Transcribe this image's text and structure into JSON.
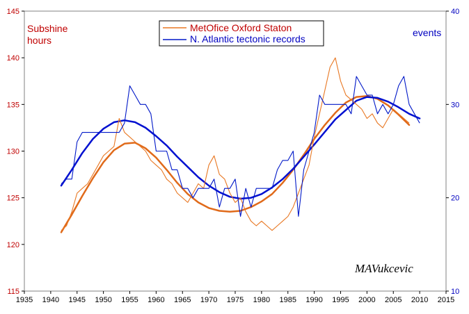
{
  "chart_data": {
    "type": "line",
    "left_axis_label": [
      "Subshine",
      "hours"
    ],
    "right_axis_label": "events",
    "signature": "MAVukcevic",
    "legend": [
      {
        "name": "MetOfice Oxford Staton",
        "color": "#e87722"
      },
      {
        "name": "N. Atlantic tectonic records",
        "color": "#0018c8"
      }
    ],
    "x_ticks": [
      1935,
      1940,
      1945,
      1950,
      1955,
      1960,
      1965,
      1970,
      1975,
      1980,
      1985,
      1990,
      1995,
      2000,
      2005,
      2010,
      2015
    ],
    "y_left_ticks": [
      115,
      120,
      125,
      130,
      135,
      140,
      145
    ],
    "y_right_ticks": [
      10,
      20,
      30,
      40
    ],
    "xlim": [
      1935,
      2015
    ],
    "ylim_left": [
      115,
      145
    ],
    "ylim_right": [
      10,
      40
    ],
    "colors": {
      "left_axis": "#c00000",
      "right_axis": "#0000c0",
      "orange": "#e87722",
      "orange_smooth": "#e06a1a",
      "blue": "#0018c8",
      "blue_smooth": "#0010d0"
    },
    "series": [
      {
        "name": "MetOfice Oxford Staton",
        "axis": "left",
        "x": [
          1942,
          1943,
          1944,
          1945,
          1946,
          1947,
          1948,
          1949,
          1950,
          1951,
          1952,
          1953,
          1954,
          1955,
          1956,
          1957,
          1958,
          1959,
          1960,
          1961,
          1962,
          1963,
          1964,
          1965,
          1966,
          1967,
          1968,
          1969,
          1970,
          1971,
          1972,
          1973,
          1974,
          1975,
          1976,
          1977,
          1978,
          1979,
          1980,
          1981,
          1982,
          1983,
          1984,
          1985,
          1986,
          1987,
          1988,
          1989,
          1990,
          1991,
          1992,
          1993,
          1994,
          1995,
          1996,
          1997,
          1998,
          1999,
          2000,
          2001,
          2002,
          2003,
          2004,
          2005,
          2006,
          2007,
          2008
        ],
        "values": [
          121.5,
          122.0,
          123.5,
          125.5,
          126.0,
          126.5,
          127.5,
          128.5,
          129.5,
          130.0,
          130.5,
          133.5,
          132.0,
          131.5,
          131.0,
          130.5,
          130.0,
          129.0,
          128.5,
          128.0,
          127.0,
          126.5,
          125.5,
          125.0,
          124.5,
          125.5,
          126.5,
          126.0,
          128.5,
          129.5,
          127.5,
          127.0,
          125.5,
          124.5,
          125.0,
          123.5,
          122.5,
          122.0,
          122.5,
          122.0,
          121.5,
          122.0,
          122.5,
          123.0,
          124.0,
          125.5,
          127.0,
          128.5,
          131.5,
          134.0,
          136.5,
          139.0,
          140.0,
          137.5,
          136.0,
          135.5,
          135.0,
          134.5,
          133.5,
          134.0,
          133.0,
          132.5,
          133.5,
          134.5,
          134.0,
          133.5,
          133.0
        ]
      },
      {
        "name": "N. Atlantic tectonic records",
        "axis": "right",
        "x": [
          1942,
          1943,
          1944,
          1945,
          1946,
          1947,
          1948,
          1949,
          1950,
          1951,
          1952,
          1953,
          1954,
          1955,
          1956,
          1957,
          1958,
          1959,
          1960,
          1961,
          1962,
          1963,
          1964,
          1965,
          1966,
          1967,
          1968,
          1969,
          1970,
          1971,
          1972,
          1973,
          1974,
          1975,
          1976,
          1977,
          1978,
          1979,
          1980,
          1981,
          1982,
          1983,
          1984,
          1985,
          1986,
          1987,
          1988,
          1989,
          1990,
          1991,
          1992,
          1993,
          1994,
          1995,
          1996,
          1997,
          1998,
          1999,
          2000,
          2001,
          2002,
          2003,
          2004,
          2005,
          2006,
          2007,
          2008,
          2009,
          2010
        ],
        "values": [
          21.5,
          22.0,
          22.0,
          26.0,
          27.0,
          27.0,
          27.0,
          27.0,
          27.0,
          27.0,
          27.0,
          27.0,
          28.0,
          32.0,
          31.0,
          30.0,
          30.0,
          29.0,
          25.0,
          25.0,
          25.0,
          23.0,
          23.0,
          21.0,
          21.0,
          20.0,
          21.0,
          21.0,
          21.0,
          22.0,
          19.0,
          21.0,
          21.0,
          22.0,
          18.0,
          21.0,
          19.0,
          21.0,
          21.0,
          21.0,
          21.0,
          23.0,
          24.0,
          24.0,
          25.0,
          18.0,
          23.0,
          25.0,
          27.0,
          31.0,
          30.0,
          30.0,
          30.0,
          30.0,
          30.0,
          29.0,
          33.0,
          32.0,
          31.0,
          31.0,
          29.0,
          30.0,
          29.0,
          30.0,
          32.0,
          33.0,
          30.0,
          29.0,
          28.0
        ]
      }
    ],
    "trend_curves": [
      {
        "color": "orange_smooth",
        "axis": "left",
        "x": [
          1942,
          1944,
          1946,
          1948,
          1950,
          1952,
          1954,
          1956,
          1958,
          1960,
          1962,
          1964,
          1966,
          1968,
          1970,
          1972,
          1974,
          1976,
          1978,
          1980,
          1982,
          1984,
          1986,
          1988,
          1990,
          1992,
          1994,
          1996,
          1998,
          2000,
          2002,
          2004,
          2006,
          2008
        ],
        "values": [
          121.3,
          123.2,
          125.2,
          127.1,
          128.8,
          130.1,
          130.8,
          130.9,
          130.3,
          129.3,
          128.0,
          126.6,
          125.4,
          124.5,
          123.9,
          123.6,
          123.5,
          123.6,
          124.0,
          124.6,
          125.4,
          126.6,
          128.0,
          129.6,
          131.3,
          132.8,
          134.1,
          135.2,
          135.8,
          135.9,
          135.6,
          134.9,
          133.9,
          132.8
        ]
      },
      {
        "color": "blue_smooth",
        "axis": "right",
        "x": [
          1942,
          1944,
          1946,
          1948,
          1950,
          1952,
          1954,
          1956,
          1958,
          1960,
          1962,
          1964,
          1966,
          1968,
          1970,
          1972,
          1974,
          1976,
          1978,
          1980,
          1982,
          1984,
          1986,
          1988,
          1990,
          1994,
          1998,
          2000,
          2002,
          2004,
          2006,
          2008,
          2010
        ],
        "values": [
          21.3,
          23.0,
          24.8,
          26.3,
          27.4,
          28.1,
          28.3,
          28.1,
          27.5,
          26.6,
          25.6,
          24.4,
          23.3,
          22.2,
          21.3,
          20.6,
          20.1,
          19.9,
          20.0,
          20.4,
          21.1,
          22.0,
          23.1,
          24.4,
          25.7,
          28.4,
          30.4,
          30.8,
          30.7,
          30.3,
          29.7,
          29.0,
          28.5
        ]
      }
    ]
  }
}
